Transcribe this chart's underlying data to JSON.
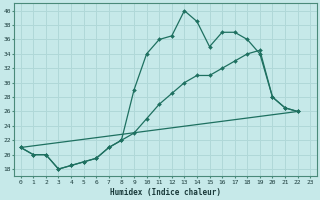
{
  "xlabel": "Humidex (Indice chaleur)",
  "bg_color": "#c6e9e9",
  "grid_color": "#b0d8d8",
  "line_color": "#1e7060",
  "xlim": [
    -0.5,
    23.5
  ],
  "ylim": [
    17,
    41
  ],
  "yticks": [
    18,
    20,
    22,
    24,
    26,
    28,
    30,
    32,
    34,
    36,
    38,
    40
  ],
  "xticks": [
    0,
    1,
    2,
    3,
    4,
    5,
    6,
    7,
    8,
    9,
    10,
    11,
    12,
    13,
    14,
    15,
    16,
    17,
    18,
    19,
    20,
    21,
    22,
    23
  ],
  "series1_x": [
    0,
    1,
    2,
    3,
    4,
    5,
    6,
    7,
    8,
    9,
    10,
    11,
    12,
    13,
    14,
    15,
    16,
    17,
    18,
    19,
    20,
    21,
    22
  ],
  "series1_y": [
    21,
    20,
    20,
    18,
    18.5,
    19,
    19.5,
    21,
    22,
    29,
    34,
    36,
    36.5,
    40,
    38.5,
    35,
    37,
    37,
    36,
    34,
    28,
    26.5,
    26
  ],
  "series2_x": [
    0,
    1,
    2,
    3,
    4,
    5,
    6,
    7,
    8,
    9,
    10,
    11,
    12,
    13,
    14,
    15,
    16,
    17,
    18,
    19,
    20,
    21,
    22
  ],
  "series2_y": [
    21,
    20,
    20,
    18,
    18.5,
    19,
    19.5,
    21,
    22,
    23,
    25,
    27,
    28.5,
    30,
    31,
    31,
    32,
    33,
    34,
    34.5,
    28,
    26.5,
    26
  ],
  "series3_x": [
    0,
    22
  ],
  "series3_y": [
    21,
    26
  ]
}
